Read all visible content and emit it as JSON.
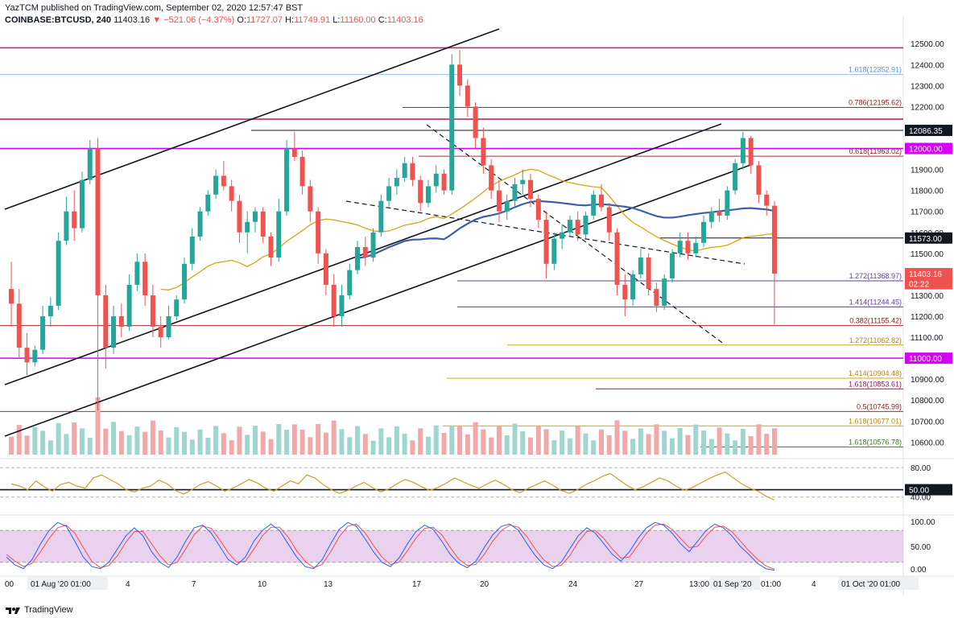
{
  "header": {
    "publisher_line": "YazTCM published on TradingView.com, September 02, 2020 12:57:47 BST",
    "symbol": "COINBASE:BTCUSD, 240",
    "last": "11403.16",
    "change": "▼ −521.06 (−4.37%)",
    "o_label": "O:",
    "o": "11727.07",
    "h_label": "H:",
    "h": "11749.91",
    "l_label": "L:",
    "l": "11160.00",
    "c_label": "C:",
    "c": "11403.16"
  },
  "footer": {
    "brand": "TradingView"
  },
  "colors": {
    "up": "#26a69a",
    "down": "#ef5350",
    "ma_fast": "#d4a515",
    "ma_slow": "#3b5fa8",
    "magenta": "#d500f9",
    "fib_purple": "#5b3ca8",
    "fib_red": "#a03030",
    "rsi": "#c9a227",
    "stoch_k": "#2962ff",
    "stoch_d": "#ef5350",
    "stoch_band": "#e1bee7"
  },
  "chart_data": {
    "type": "candlestick",
    "price_axis": {
      "range": [
        10540,
        12570
      ],
      "ticks": [
        12500,
        12400,
        12300,
        12200,
        12100,
        12000,
        11900,
        11800,
        11700,
        11600,
        11500,
        11400,
        11300,
        11200,
        11100,
        11000,
        10900,
        10800,
        10700,
        10600
      ],
      "tick_labels": [
        "12500.00",
        "12400.00",
        "12300.00",
        "12200.00",
        "12100.00",
        "12000.00",
        "11900.00",
        "11800.00",
        "11700.00",
        "11600.00",
        "11500.00",
        "11400.00",
        "11300.00",
        "11200.00",
        "11100.00",
        "11000.00",
        "10900.00",
        "10800.00",
        "10700.00",
        "10600.00"
      ]
    },
    "time_axis": {
      "labels": [
        "00",
        "01 Aug '20  01:00",
        "4",
        "7",
        "10",
        "13",
        "17",
        "20",
        "24",
        "27",
        "13:00",
        "01 Sep '20",
        "01:00",
        "4",
        "01 Oct '20  01:00"
      ]
    },
    "badges": [
      {
        "price": 12086.35,
        "label": "12086.35",
        "bg": "#131722",
        "fg": "#ffffff"
      },
      {
        "price": 12000,
        "label": "12000.00",
        "bg": "#d500f9",
        "fg": "#ffffff"
      },
      {
        "price": 11573,
        "label": "11573.00",
        "bg": "#131722",
        "fg": "#ffffff"
      },
      {
        "price": 11403.16,
        "label": "11403.16",
        "bg": "#ef5350",
        "fg": "#ffffff"
      },
      {
        "price": 11355,
        "label": "02:22",
        "bg": "#ef5350",
        "fg": "#ffffff"
      },
      {
        "price": 11000,
        "label": "11000.00",
        "bg": "#d500f9",
        "fg": "#ffffff"
      }
    ],
    "fib_labels": [
      {
        "text": "1.618(12352.91)",
        "price": 12352.91,
        "color": "#5b8fd6"
      },
      {
        "text": "0.786(12195.62)",
        "price": 12195.62,
        "color": "#8b1a1a"
      },
      {
        "text": "0.618(11963.02)",
        "price": 11963.02,
        "color": "#8b1a1a"
      },
      {
        "text": "1.272(11368.97)",
        "price": 11368.97,
        "color": "#5b3ca8"
      },
      {
        "text": "1.414(11244.45)",
        "price": 11244.45,
        "color": "#5b3ca8"
      },
      {
        "text": "0.382(11155.42)",
        "price": 11155.42,
        "color": "#8b1a1a"
      },
      {
        "text": "1.272(11062.82)",
        "price": 11062.82,
        "color": "#b8860b"
      },
      {
        "text": "1.414(10904.48)",
        "price": 10904.48,
        "color": "#b8860b"
      },
      {
        "text": "1.618(10853.61)",
        "price": 10853.61,
        "color": "#8b1a5a"
      },
      {
        "text": "0.5(10745.99)",
        "price": 10745.99,
        "color": "#8b1a1a"
      },
      {
        "text": "1.618(10677.01)",
        "price": 10677.01,
        "color": "#b8860b"
      },
      {
        "text": "1.618(10576.78)",
        "price": 10576.78,
        "color": "#3f7a1f"
      }
    ],
    "rsi": {
      "tick_labels": [
        "80.00",
        "40.00"
      ],
      "level_badge": "50.00",
      "values": [
        58,
        55,
        50,
        62,
        54,
        48,
        57,
        60,
        55,
        52,
        66,
        70,
        64,
        58,
        50,
        47,
        52,
        55,
        63,
        58,
        49,
        44,
        50,
        57,
        61,
        55,
        48,
        52,
        58,
        64,
        59,
        52,
        48,
        55,
        62,
        58,
        70,
        66,
        57,
        50,
        45,
        49,
        55,
        60,
        53,
        47,
        51,
        58,
        64,
        60,
        54,
        49,
        53,
        59,
        66,
        61,
        56,
        52,
        58,
        63,
        57,
        50,
        46,
        52,
        57,
        62,
        56,
        49,
        45,
        50,
        57,
        62,
        68,
        72,
        64,
        56,
        50,
        54,
        60,
        66,
        62,
        55,
        49,
        53,
        59,
        65,
        70,
        74,
        66,
        58,
        52,
        48,
        41,
        36
      ]
    },
    "stoch": {
      "tick_labels": [
        "100.00",
        "50.00",
        "0.00"
      ],
      "k": [
        30,
        15,
        8,
        25,
        55,
        80,
        95,
        88,
        60,
        30,
        12,
        8,
        20,
        45,
        70,
        85,
        70,
        40,
        20,
        10,
        30,
        60,
        85,
        90,
        75,
        50,
        25,
        15,
        30,
        60,
        80,
        92,
        80,
        55,
        30,
        12,
        8,
        25,
        55,
        82,
        95,
        88,
        65,
        40,
        20,
        12,
        28,
        55,
        78,
        90,
        82,
        60,
        35,
        18,
        10,
        22,
        48,
        72,
        88,
        92,
        80,
        55,
        32,
        15,
        8,
        20,
        45,
        70,
        85,
        75,
        55,
        35,
        22,
        40,
        65,
        85,
        95,
        90,
        75,
        55,
        40,
        60,
        80,
        92,
        85,
        70,
        50,
        35,
        18,
        8,
        5
      ],
      "d": [
        35,
        22,
        12,
        18,
        40,
        65,
        85,
        90,
        75,
        48,
        22,
        10,
        14,
        32,
        58,
        78,
        78,
        55,
        32,
        15,
        20,
        45,
        72,
        88,
        84,
        62,
        38,
        20,
        22,
        45,
        70,
        86,
        86,
        68,
        42,
        22,
        10,
        16,
        40,
        68,
        88,
        92,
        76,
        52,
        30,
        16,
        20,
        42,
        66,
        84,
        86,
        72,
        48,
        26,
        14,
        16,
        35,
        60,
        80,
        90,
        86,
        68,
        44,
        24,
        12,
        14,
        32,
        58,
        78,
        80,
        65,
        45,
        28,
        30,
        52,
        75,
        90,
        92,
        82,
        65,
        48,
        50,
        70,
        86,
        88,
        78,
        60,
        42,
        26,
        13,
        7
      ]
    },
    "volume_note": "",
    "candles": [
      [
        11330,
        11460,
        11150,
        11260
      ],
      [
        11260,
        11330,
        11000,
        11050
      ],
      [
        11050,
        11120,
        10920,
        10980
      ],
      [
        10980,
        11060,
        10960,
        11040
      ],
      [
        11040,
        11250,
        11020,
        11200
      ],
      [
        11200,
        11290,
        11150,
        11250
      ],
      [
        11250,
        11600,
        11230,
        11560
      ],
      [
        11560,
        11770,
        11540,
        11700
      ],
      [
        11700,
        11800,
        11560,
        11620
      ],
      [
        11620,
        11890,
        11600,
        11850
      ],
      [
        11850,
        12040,
        11830,
        12000
      ],
      [
        12000,
        12050,
        10750,
        11300
      ],
      [
        11300,
        11350,
        10950,
        11050
      ],
      [
        11050,
        11250,
        11020,
        11200
      ],
      [
        11200,
        11260,
        11100,
        11150
      ],
      [
        11150,
        11400,
        11130,
        11350
      ],
      [
        11350,
        11500,
        11320,
        11460
      ],
      [
        11460,
        11500,
        11250,
        11300
      ],
      [
        11300,
        11350,
        11100,
        11150
      ],
      [
        11150,
        11200,
        11050,
        11100
      ],
      [
        11100,
        11250,
        11090,
        11200
      ],
      [
        11200,
        11300,
        11180,
        11280
      ],
      [
        11280,
        11480,
        11260,
        11450
      ],
      [
        11450,
        11620,
        11420,
        11580
      ],
      [
        11580,
        11720,
        11560,
        11700
      ],
      [
        11700,
        11800,
        11680,
        11780
      ],
      [
        11780,
        11900,
        11760,
        11870
      ],
      [
        11870,
        11940,
        11800,
        11820
      ],
      [
        11820,
        11850,
        11700,
        11750
      ],
      [
        11750,
        11780,
        11550,
        11600
      ],
      [
        11600,
        11700,
        11500,
        11650
      ],
      [
        11650,
        11720,
        11600,
        11700
      ],
      [
        11700,
        11720,
        11550,
        11580
      ],
      [
        11580,
        11600,
        11440,
        11480
      ],
      [
        11480,
        11760,
        11460,
        11700
      ],
      [
        11700,
        12040,
        11680,
        12000
      ],
      [
        12000,
        12080,
        11940,
        11960
      ],
      [
        11960,
        11990,
        11780,
        11820
      ],
      [
        11820,
        11850,
        11650,
        11700
      ],
      [
        11700,
        11720,
        11450,
        11500
      ],
      [
        11500,
        11520,
        11300,
        11350
      ],
      [
        11350,
        11400,
        11150,
        11200
      ],
      [
        11200,
        11350,
        11150,
        11300
      ],
      [
        11300,
        11450,
        11280,
        11420
      ],
      [
        11420,
        11560,
        11400,
        11530
      ],
      [
        11530,
        11580,
        11440,
        11480
      ],
      [
        11480,
        11620,
        11460,
        11600
      ],
      [
        11600,
        11780,
        11580,
        11750
      ],
      [
        11750,
        11860,
        11720,
        11820
      ],
      [
        11820,
        11900,
        11780,
        11860
      ],
      [
        11860,
        11960,
        11840,
        11930
      ],
      [
        11930,
        11960,
        11820,
        11850
      ],
      [
        11850,
        11870,
        11700,
        11740
      ],
      [
        11740,
        11850,
        11720,
        11820
      ],
      [
        11820,
        11920,
        11790,
        11880
      ],
      [
        11880,
        11900,
        11780,
        11800
      ],
      [
        11800,
        12450,
        11780,
        12400
      ],
      [
        12400,
        12470,
        12250,
        12300
      ],
      [
        12300,
        12330,
        12150,
        12200
      ],
      [
        12200,
        12220,
        12000,
        12050
      ],
      [
        12050,
        12100,
        11880,
        11920
      ],
      [
        11920,
        11950,
        11760,
        11800
      ],
      [
        11800,
        11850,
        11650,
        11700
      ],
      [
        11700,
        11780,
        11660,
        11750
      ],
      [
        11750,
        11860,
        11720,
        11830
      ],
      [
        11830,
        11900,
        11780,
        11850
      ],
      [
        11850,
        11880,
        11720,
        11760
      ],
      [
        11760,
        11780,
        11620,
        11660
      ],
      [
        11660,
        11700,
        11380,
        11450
      ],
      [
        11450,
        11600,
        11420,
        11570
      ],
      [
        11570,
        11640,
        11520,
        11600
      ],
      [
        11600,
        11680,
        11580,
        11660
      ],
      [
        11660,
        11700,
        11560,
        11590
      ],
      [
        11590,
        11700,
        11570,
        11680
      ],
      [
        11680,
        11800,
        11660,
        11780
      ],
      [
        11780,
        11830,
        11700,
        11720
      ],
      [
        11720,
        11740,
        11560,
        11600
      ],
      [
        11600,
        11620,
        11300,
        11350
      ],
      [
        11350,
        11400,
        11200,
        11280
      ],
      [
        11280,
        11420,
        11250,
        11400
      ],
      [
        11400,
        11520,
        11380,
        11480
      ],
      [
        11480,
        11500,
        11300,
        11330
      ],
      [
        11330,
        11360,
        11220,
        11250
      ],
      [
        11250,
        11400,
        11230,
        11380
      ],
      [
        11380,
        11520,
        11360,
        11500
      ],
      [
        11500,
        11600,
        11480,
        11560
      ],
      [
        11560,
        11600,
        11470,
        11500
      ],
      [
        11500,
        11580,
        11480,
        11550
      ],
      [
        11550,
        11680,
        11530,
        11650
      ],
      [
        11650,
        11720,
        11620,
        11700
      ],
      [
        11700,
        11760,
        11650,
        11680
      ],
      [
        11680,
        11820,
        11660,
        11800
      ],
      [
        11800,
        11950,
        11780,
        11930
      ],
      [
        11930,
        12080,
        11900,
        12050
      ],
      [
        12050,
        12060,
        11880,
        11920
      ],
      [
        11920,
        11940,
        11740,
        11780
      ],
      [
        11780,
        11800,
        11680,
        11727
      ],
      [
        11727,
        11750,
        11160,
        11403
      ]
    ]
  }
}
